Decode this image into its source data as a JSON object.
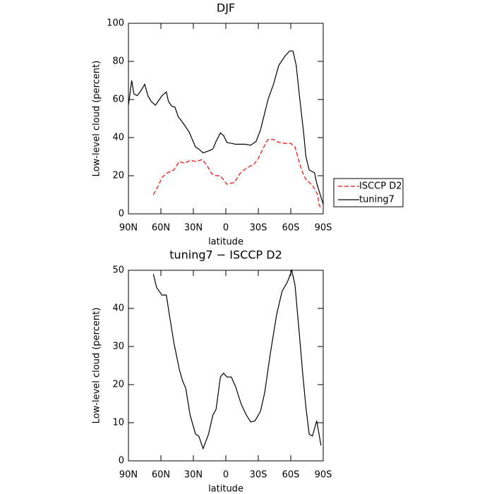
{
  "chart_data": [
    {
      "type": "line",
      "title": "DJF",
      "xlabel": "latitude",
      "ylabel": "Low-level cloud (percent)",
      "xlim": [
        90,
        -90
      ],
      "xticks": [
        {
          "value": 90,
          "label": "90N"
        },
        {
          "value": 60,
          "label": "60N"
        },
        {
          "value": 30,
          "label": "30N"
        },
        0,
        {
          "value": -30,
          "label": "30S"
        },
        {
          "value": -60,
          "label": "60S"
        },
        {
          "value": -90,
          "label": "90S"
        }
      ],
      "ylim": [
        0,
        100
      ],
      "yticks": [
        0,
        20,
        40,
        60,
        80,
        100
      ],
      "legend": "right",
      "series": [
        {
          "name": "ISCCP D2",
          "color": "#ff0000",
          "dash": true,
          "x": [
            67,
            63,
            59,
            54,
            48,
            43,
            38,
            33,
            27,
            22,
            18,
            13,
            9,
            5,
            -1,
            -8,
            -13,
            -19,
            -26,
            -30,
            -35,
            -39,
            -44,
            -49,
            -55,
            -60,
            -64,
            -70,
            -74,
            -80,
            -85,
            -86,
            -88
          ],
          "values": [
            10,
            14,
            19,
            21.5,
            23,
            27.5,
            26.5,
            28,
            27.5,
            28.5,
            26,
            21,
            20,
            20,
            15.5,
            16.5,
            21,
            24,
            26,
            29,
            35,
            39,
            39,
            37.5,
            37,
            37,
            35,
            23,
            18,
            15,
            10,
            5,
            3
          ]
        },
        {
          "name": "tuning7",
          "color": "#000000",
          "dash": false,
          "x": [
            90,
            87,
            85,
            82,
            78,
            75,
            72,
            69,
            65,
            59,
            55,
            53,
            50,
            47,
            44,
            40,
            34,
            28,
            25,
            21,
            16,
            12,
            9,
            5,
            2,
            -1,
            -5,
            -9,
            -18,
            -23,
            -28,
            -32,
            -39,
            -44,
            -49,
            -55,
            -59,
            -62,
            -65,
            -68,
            -72,
            -74,
            -77,
            -82,
            -84,
            -90
          ],
          "values": [
            57,
            70,
            63,
            62,
            65,
            68,
            62,
            59,
            57,
            62,
            64,
            59,
            56.5,
            56,
            51,
            48,
            43,
            35,
            34,
            32,
            33,
            34,
            38,
            42.5,
            41,
            37.5,
            37,
            36.5,
            36.5,
            36,
            38,
            44,
            60,
            68,
            78,
            83,
            85.5,
            85.5,
            78,
            62,
            42,
            30,
            23,
            21.5,
            16,
            5
          ]
        }
      ]
    },
    {
      "type": "line",
      "title": "tuning7 − ISCCP D2",
      "xlabel": "latitude",
      "ylabel": "Low-level cloud (percent)",
      "xlim": [
        90,
        -90
      ],
      "xticks": [
        {
          "value": 90,
          "label": "90N"
        },
        {
          "value": 60,
          "label": "60N"
        },
        {
          "value": 30,
          "label": "30N"
        },
        0,
        {
          "value": -30,
          "label": "30S"
        },
        {
          "value": -60,
          "label": "60S"
        },
        {
          "value": -90,
          "label": "90S"
        }
      ],
      "ylim": [
        0,
        50
      ],
      "yticks": [
        0,
        10,
        20,
        30,
        40,
        50
      ],
      "series": [
        {
          "color": "#000000",
          "dash": false,
          "x": [
            67,
            64,
            59,
            55,
            52,
            48,
            43,
            40,
            37,
            33,
            28,
            25,
            21,
            16,
            12,
            9,
            5,
            2,
            -1,
            -5,
            -9,
            -14,
            -19,
            -23,
            -27,
            -32,
            -36,
            -41,
            -47,
            -52,
            -57,
            -61,
            -64,
            -68,
            -71,
            -74,
            -77,
            -80,
            -84,
            -88
          ],
          "values": [
            49,
            45.5,
            43.5,
            43.5,
            38,
            31,
            24,
            21,
            19,
            12,
            7,
            6.5,
            3.2,
            7,
            12,
            13.5,
            22,
            23,
            22,
            22,
            19.5,
            15,
            12,
            10.2,
            10.5,
            13,
            18,
            28,
            38.5,
            44.5,
            47,
            50,
            46,
            33,
            23,
            14,
            7,
            6.5,
            10.5,
            4
          ]
        }
      ]
    }
  ]
}
